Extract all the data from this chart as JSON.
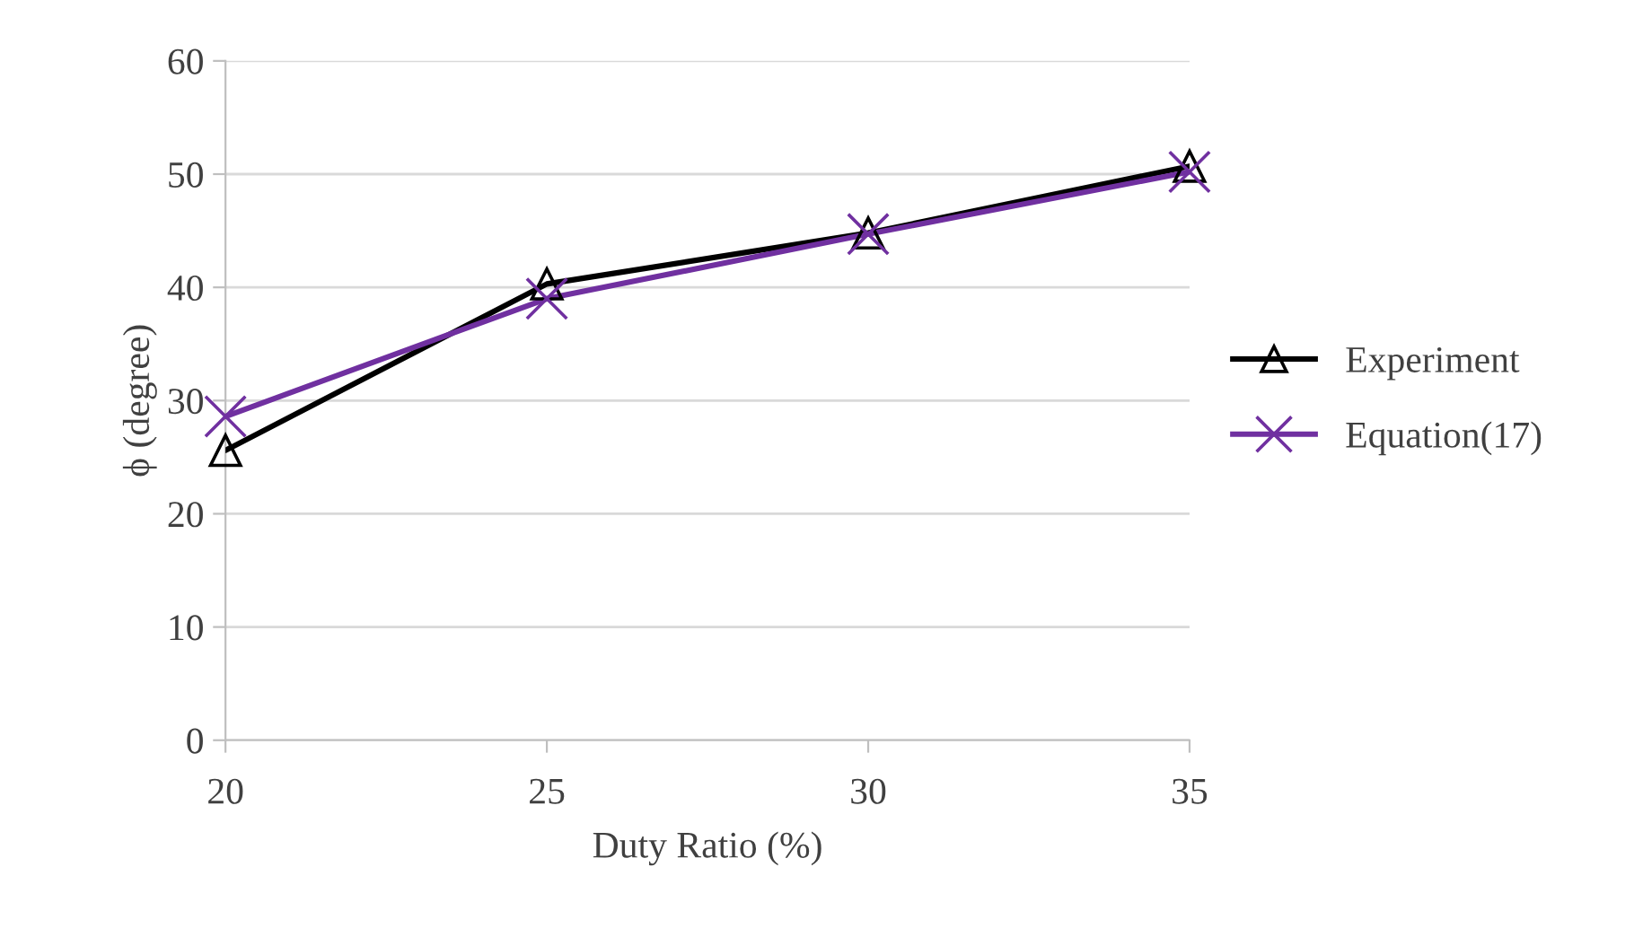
{
  "chart_data": {
    "type": "line",
    "xlabel": "Duty Ratio (%)",
    "ylabel": "ϕ (degree)",
    "x": [
      20,
      25,
      30,
      35
    ],
    "xlim": [
      20,
      35
    ],
    "xticks": [
      20,
      25,
      30,
      35
    ],
    "ylim": [
      0,
      60
    ],
    "yticks": [
      0,
      10,
      20,
      30,
      40,
      50,
      60
    ],
    "grid": "y",
    "legend": "right",
    "line_style": "solid",
    "series": [
      {
        "name": "Experiment",
        "color": "#000000",
        "marker": "triangle",
        "values": [
          25.6,
          40.3,
          44.8,
          50.7
        ]
      },
      {
        "name": "Equation(17)",
        "color": "#7030a0",
        "marker": "cross",
        "values": [
          28.6,
          39.0,
          44.7,
          50.2
        ]
      }
    ]
  }
}
